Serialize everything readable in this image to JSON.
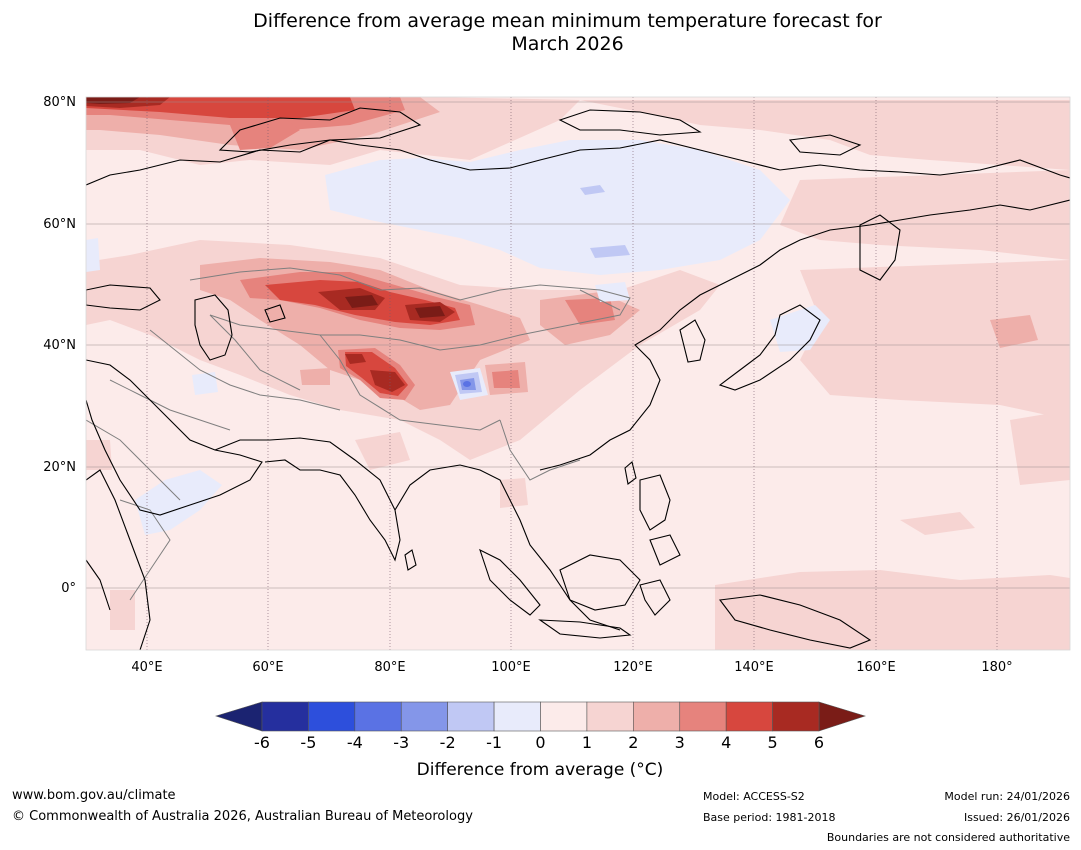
{
  "title_line1": "Difference from average mean minimum temperature forecast for",
  "title_line2": "March 2026",
  "lat_labels": [
    "80°N",
    "60°N",
    "40°N",
    "20°N",
    "0°"
  ],
  "lon_labels": [
    "40°E",
    "60°E",
    "80°E",
    "100°E",
    "120°E",
    "140°E",
    "160°E",
    "180°"
  ],
  "colorbar": {
    "ticks": [
      "-6",
      "-5",
      "-4",
      "-3",
      "-2",
      "-1",
      "0",
      "1",
      "2",
      "3",
      "4",
      "5",
      "6"
    ],
    "colors": [
      "#252f9e",
      "#2d4fdc",
      "#5a72e4",
      "#8496e9",
      "#c0c8f4",
      "#e8ebfb",
      "#fcebea",
      "#f6d4d2",
      "#eeafaa",
      "#e6837d",
      "#d7473e",
      "#a82a22"
    ],
    "under_color": "#1b2371",
    "over_color": "#7a1c17",
    "label": "Difference from average (°C)"
  },
  "footer": {
    "url": "www.bom.gov.au/climate",
    "copyright": "© Commonwealth of Australia 2026, Australian Bureau of Meteorology",
    "model": "Model: ACCESS-S2",
    "base_period": "Base period: 1981-2018",
    "model_run": "Model run: 24/01/2026",
    "issued": "Issued: 26/01/2026",
    "disclaimer": "Boundaries are not considered authoritative"
  }
}
